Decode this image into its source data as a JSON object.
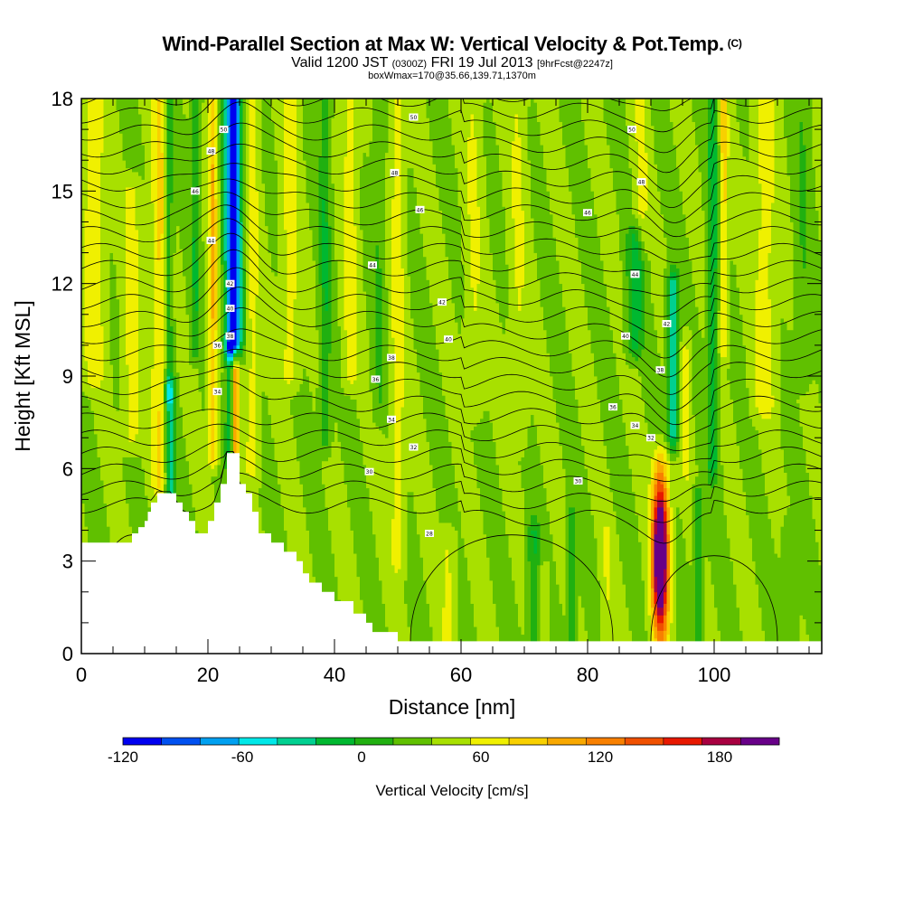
{
  "title": "Wind-Parallel Section at Max W: Vertical Velocity & Pot.Temp.",
  "title_mark": "(C)",
  "subtitle_main": "Valid 1200 JST",
  "subtitle_utc": "(0300Z)",
  "subtitle_date": "FRI 19 Jul 2013",
  "subtitle_fcst": "[9hrFcst@2247z]",
  "subtitle2": "boxWmax=170@35.66,139.71,1370m",
  "chart_data": {
    "type": "heatmap",
    "xlabel": "Distance [nm]",
    "ylabel": "Height [Kft MSL]",
    "xlim": [
      0,
      117
    ],
    "ylim": [
      0,
      18
    ],
    "x_ticks": [
      "0",
      "20",
      "40",
      "60",
      "80",
      "100"
    ],
    "y_ticks": [
      "0",
      "3",
      "6",
      "9",
      "12",
      "15",
      "18"
    ],
    "colorbar": {
      "title": "Vertical Velocity [cm/s]",
      "range": [
        -120,
        210
      ],
      "step": 15,
      "tick_labels": [
        "-120",
        "-60",
        "0",
        "60",
        "120",
        "180"
      ],
      "colors": [
        "#0000f0",
        "#0050f0",
        "#00a0f0",
        "#00e8e8",
        "#00d090",
        "#00b830",
        "#20b010",
        "#60c000",
        "#a8e000",
        "#f0f000",
        "#f8d000",
        "#f8a800",
        "#f88000",
        "#f05000",
        "#e81800",
        "#a80040",
        "#680088"
      ]
    },
    "terrain_profile": {
      "x": [
        0,
        7.5,
        8,
        9,
        10,
        10.5,
        11,
        12,
        13,
        14,
        15,
        16,
        17,
        18,
        19,
        20,
        21,
        22,
        23,
        24,
        25,
        26,
        27,
        28,
        29,
        30,
        31,
        32,
        33,
        34,
        35,
        36,
        38,
        40,
        43,
        45,
        46,
        48,
        50,
        117
      ],
      "height": [
        3.6,
        3.6,
        3.9,
        4.1,
        4.3,
        4.6,
        4.9,
        5.2,
        5.2,
        5.2,
        4.9,
        4.6,
        4.3,
        3.9,
        3.9,
        4.3,
        4.9,
        5.5,
        6.5,
        6.5,
        5.5,
        5.2,
        4.6,
        3.9,
        3.9,
        3.6,
        3.6,
        3.3,
        3.3,
        3.0,
        2.6,
        2.3,
        2.0,
        1.7,
        1.3,
        1.0,
        0.7,
        0.7,
        0.4,
        0.35
      ]
    },
    "updraft_max": {
      "x": 91.5,
      "height": 3.2,
      "value_cm_s": 170
    },
    "downdraft_max": {
      "x": 24,
      "height": 15.5,
      "value_cm_s": -120
    },
    "isotherm_labels": [
      "50",
      "48",
      "46",
      "44",
      "42",
      "40",
      "38",
      "36",
      "34",
      "32",
      "30",
      "28"
    ],
    "isotherm_label_positions": [
      {
        "t": "50",
        "x": 52.5,
        "h": 17.4
      },
      {
        "t": "50",
        "x": 87,
        "h": 17.0
      },
      {
        "t": "48",
        "x": 49.5,
        "h": 15.6
      },
      {
        "t": "48",
        "x": 88.5,
        "h": 15.3
      },
      {
        "t": "46",
        "x": 53.5,
        "h": 14.4
      },
      {
        "t": "46",
        "x": 80,
        "h": 14.3
      },
      {
        "t": "44",
        "x": 46,
        "h": 12.6
      },
      {
        "t": "44",
        "x": 87.5,
        "h": 12.3
      },
      {
        "t": "42",
        "x": 57,
        "h": 11.4
      },
      {
        "t": "42",
        "x": 92.5,
        "h": 10.7
      },
      {
        "t": "40",
        "x": 58,
        "h": 10.2
      },
      {
        "t": "40",
        "x": 86,
        "h": 10.3
      },
      {
        "t": "38",
        "x": 49,
        "h": 9.6
      },
      {
        "t": "38",
        "x": 91.5,
        "h": 9.2
      },
      {
        "t": "36",
        "x": 46.5,
        "h": 8.9
      },
      {
        "t": "36",
        "x": 84,
        "h": 8.0
      },
      {
        "t": "34",
        "x": 49,
        "h": 7.6
      },
      {
        "t": "34",
        "x": 87.5,
        "h": 7.4
      },
      {
        "t": "32",
        "x": 52.5,
        "h": 6.7
      },
      {
        "t": "32",
        "x": 90,
        "h": 7.0
      },
      {
        "t": "30",
        "x": 45.5,
        "h": 5.9
      },
      {
        "t": "30",
        "x": 78.5,
        "h": 5.6
      },
      {
        "t": "28",
        "x": 55,
        "h": 3.9
      },
      {
        "t": "50",
        "x": 22.5,
        "h": 17.0
      },
      {
        "t": "48",
        "x": 20.5,
        "h": 16.3
      },
      {
        "t": "46",
        "x": 18,
        "h": 15.0
      },
      {
        "t": "44",
        "x": 20.5,
        "h": 13.4
      },
      {
        "t": "42",
        "x": 23.5,
        "h": 12.0
      },
      {
        "t": "40",
        "x": 23.5,
        "h": 11.2
      },
      {
        "t": "38",
        "x": 23.5,
        "h": 10.3
      },
      {
        "t": "36",
        "x": 21.5,
        "h": 10.0
      },
      {
        "t": "34",
        "x": 21.5,
        "h": 8.5
      }
    ]
  }
}
